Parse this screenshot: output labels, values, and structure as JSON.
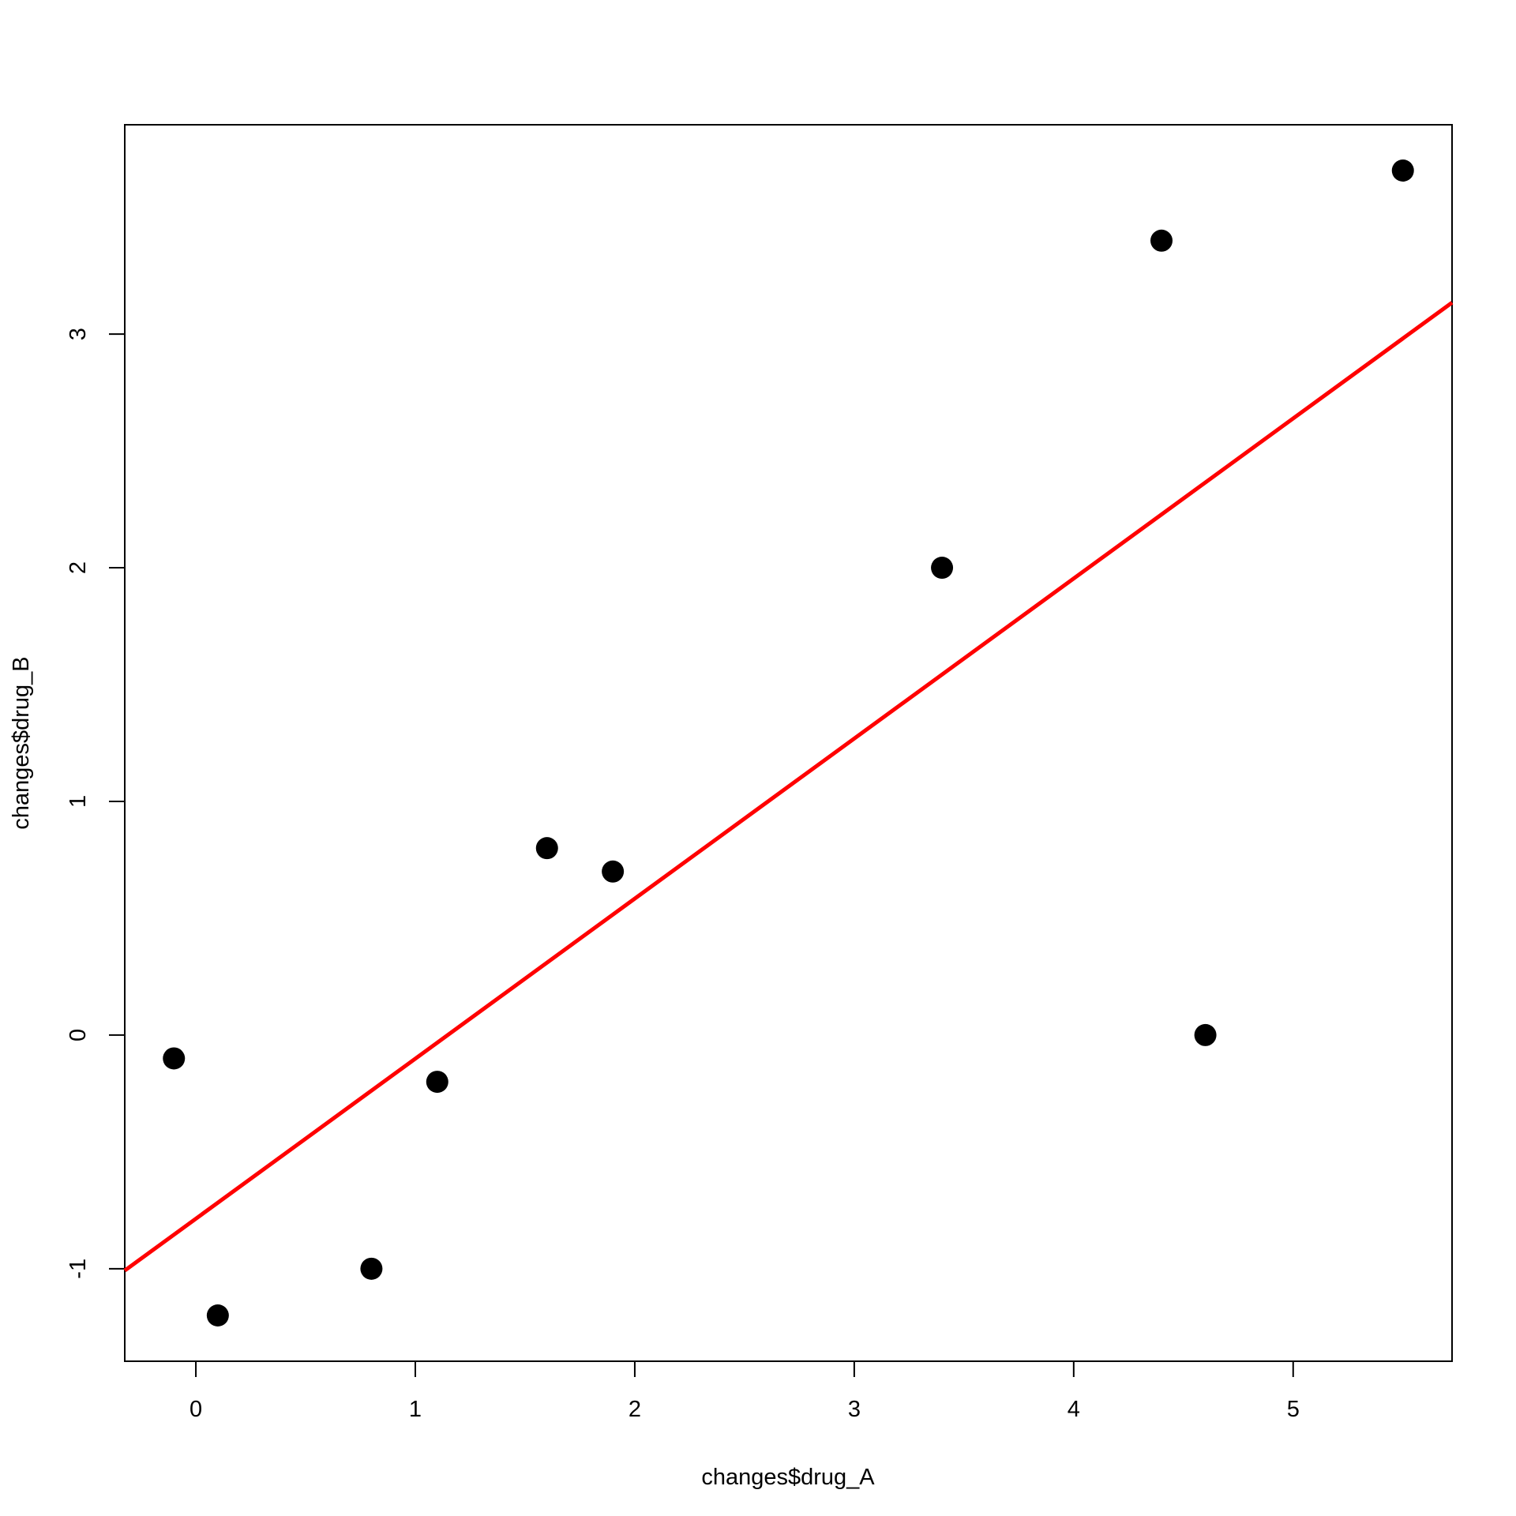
{
  "chart_data": {
    "type": "scatter",
    "title": "",
    "xlabel": "changes$drug_A",
    "ylabel": "changes$drug_B",
    "xlim": [
      -0.324,
      5.724
    ],
    "ylim": [
      -1.396,
      3.896
    ],
    "xticks": [
      "0",
      "1",
      "2",
      "3",
      "4",
      "5"
    ],
    "yticks": [
      "-1",
      "0",
      "1",
      "2",
      "3"
    ],
    "grid": false,
    "points": [
      {
        "x": -0.1,
        "y": -0.1
      },
      {
        "x": 0.1,
        "y": -1.2
      },
      {
        "x": 0.8,
        "y": -1.0
      },
      {
        "x": 1.1,
        "y": -0.2
      },
      {
        "x": 1.6,
        "y": 0.8
      },
      {
        "x": 1.9,
        "y": 0.7
      },
      {
        "x": 3.4,
        "y": 2.0
      },
      {
        "x": 4.4,
        "y": 3.4
      },
      {
        "x": 4.6,
        "y": 0.0
      },
      {
        "x": 5.5,
        "y": 3.7
      }
    ],
    "regression_line": {
      "intercept": -0.786,
      "slope": 0.685,
      "color": "#ff0000"
    },
    "point_color": "#000000"
  }
}
